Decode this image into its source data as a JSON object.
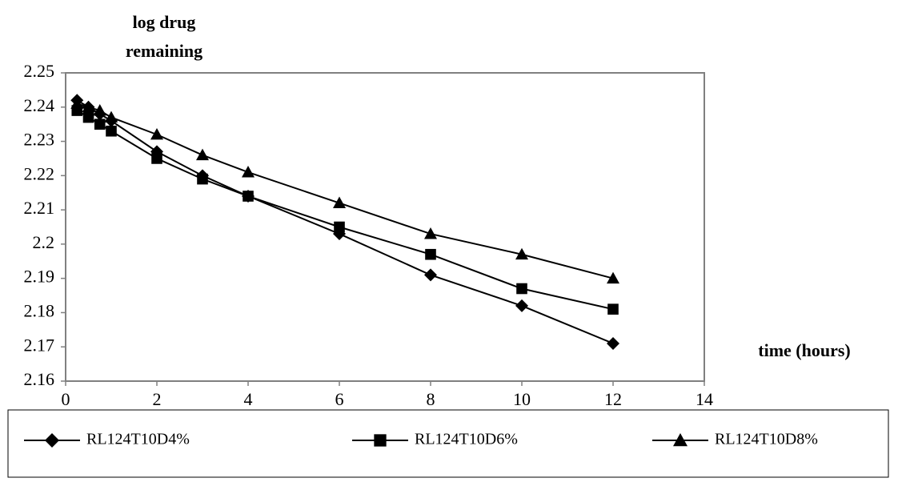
{
  "chart_data": {
    "type": "line",
    "y_label": [
      "log drug",
      "remaining"
    ],
    "x_label": "time (hours)",
    "x": [
      0.25,
      0.5,
      0.75,
      1,
      2,
      3,
      4,
      6,
      8,
      10,
      12
    ],
    "series": [
      {
        "name": "RL124T10D4%",
        "color": "#000000",
        "marker": "diamond",
        "values": [
          2.242,
          2.24,
          2.238,
          2.236,
          2.227,
          2.22,
          2.214,
          2.203,
          2.191,
          2.182,
          2.171
        ]
      },
      {
        "name": "RL124T10D6%",
        "color": "#000000",
        "marker": "square",
        "values": [
          2.239,
          2.237,
          2.235,
          2.233,
          2.225,
          2.219,
          2.214,
          2.205,
          2.197,
          2.187,
          2.181
        ]
      },
      {
        "name": "RL124T10D8%",
        "color": "#000000",
        "marker": "triangle",
        "values": [
          2.241,
          2.24,
          2.239,
          2.237,
          2.232,
          2.226,
          2.221,
          2.212,
          2.203,
          2.197,
          2.19
        ]
      }
    ],
    "xlim": [
      0,
      14
    ],
    "xticks": [
      0,
      2,
      4,
      6,
      8,
      10,
      12,
      14
    ],
    "ylim": [
      2.16,
      2.25
    ],
    "yticks": [
      2.16,
      2.17,
      2.18,
      2.19,
      2.2,
      2.21,
      2.22,
      2.23,
      2.24,
      2.25
    ],
    "grid": false,
    "legend": "bottom"
  }
}
